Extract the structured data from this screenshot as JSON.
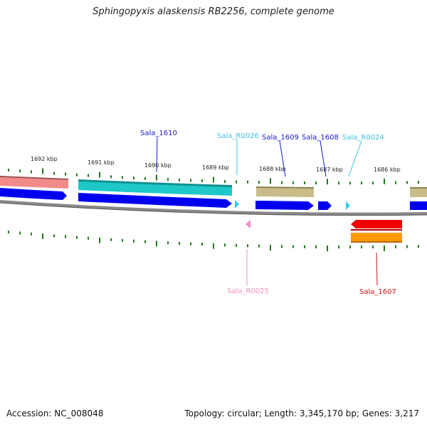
{
  "title": "Sphingopyxis alaskensis RB2256, complete genome",
  "footer": {
    "accession": "Accession: NC_008048",
    "summary": "Topology: circular; Length: 3,345,170 bp; Genes: 3,217"
  },
  "scale": {
    "unit": "kbp",
    "tick_labels": [
      "1692 kbp",
      "1691 kbp",
      "1690 kbp",
      "1689 kbp",
      "1688 kbp",
      "1687 kbp",
      "1686 kbp"
    ]
  },
  "gene_labels": [
    {
      "name": "Sala_1610",
      "color": "#1a1ac8"
    },
    {
      "name": "Sala_R0026",
      "color": "#3fc0e0"
    },
    {
      "name": "Sala_1609",
      "color": "#1a1ac8"
    },
    {
      "name": "Sala_1608",
      "color": "#1a1ac8"
    },
    {
      "name": "Sala_R0024",
      "color": "#3fc0e0"
    },
    {
      "name": "Sala_R0025",
      "color": "#f08cc0"
    },
    {
      "name": "Sala_1607",
      "color": "#d01010"
    }
  ],
  "colors": {
    "cds": "#0000ee",
    "trna": "#33ccee",
    "rrna_like": "#f08cc0",
    "cyan_band": "#1ec8c8",
    "salmon_band": "#f08080",
    "khaki_band": "#c8bc88",
    "red_band": "#ee0000",
    "orange_band": "#ff9900",
    "backbone": "#888888",
    "tick": "#1f7a1f"
  }
}
